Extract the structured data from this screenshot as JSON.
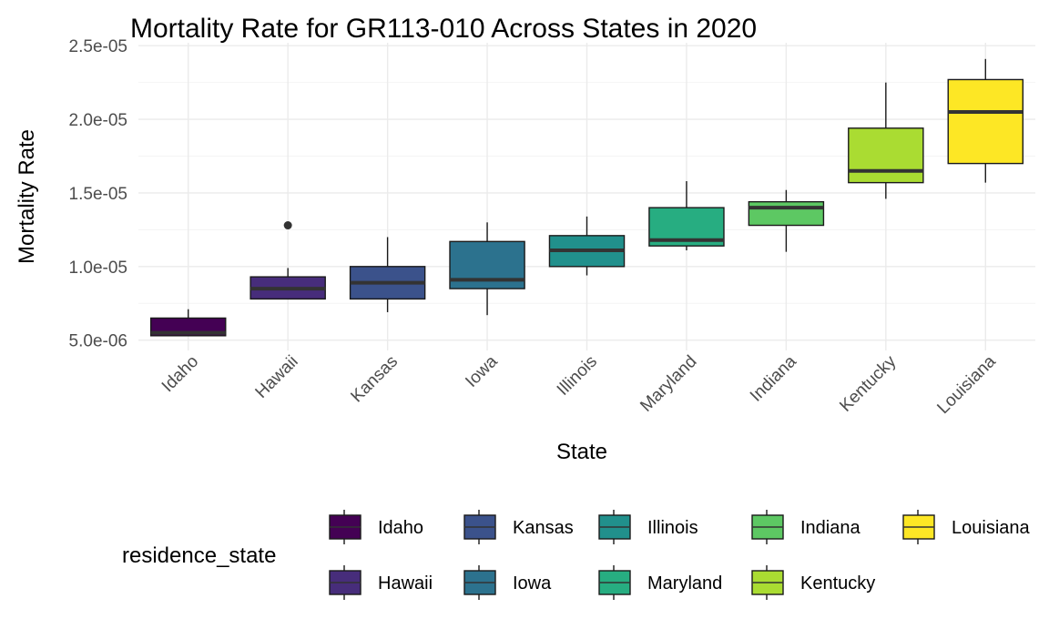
{
  "chart_data": {
    "type": "box",
    "title": "Mortality Rate for GR113-010 Across States in 2020",
    "xlabel": "State",
    "ylabel": "Mortality Rate",
    "ylim": [
      4.3e-06,
      2.52e-05
    ],
    "y_ticks": [
      5e-06,
      1e-05,
      1.5e-05,
      2e-05,
      2.5e-05
    ],
    "y_tick_labels": [
      "5.0e-06",
      "1.0e-05",
      "1.5e-05",
      "2.0e-05",
      "2.5e-05"
    ],
    "grid": true,
    "legend_title": "residence_state",
    "legend_position": "bottom",
    "categories": [
      "Idaho",
      "Hawaii",
      "Kansas",
      "Iowa",
      "Illinois",
      "Maryland",
      "Indiana",
      "Kentucky",
      "Louisiana"
    ],
    "series": [
      {
        "name": "Idaho",
        "color": "#440154",
        "whisker_low": 5.3e-06,
        "q1": 5.3e-06,
        "median": 5.5e-06,
        "q3": 6.5e-06,
        "whisker_high": 7.1e-06,
        "outliers": []
      },
      {
        "name": "Hawaii",
        "color": "#472D7B",
        "whisker_low": 7.8e-06,
        "q1": 7.8e-06,
        "median": 8.5e-06,
        "q3": 9.3e-06,
        "whisker_high": 9.9e-06,
        "outliers": [
          1.28e-05
        ]
      },
      {
        "name": "Kansas",
        "color": "#3B528B",
        "whisker_low": 6.9e-06,
        "q1": 7.8e-06,
        "median": 8.9e-06,
        "q3": 1e-05,
        "whisker_high": 1.2e-05,
        "outliers": []
      },
      {
        "name": "Iowa",
        "color": "#2C728E",
        "whisker_low": 6.7e-06,
        "q1": 8.5e-06,
        "median": 9.1e-06,
        "q3": 1.17e-05,
        "whisker_high": 1.3e-05,
        "outliers": []
      },
      {
        "name": "Illinois",
        "color": "#21908C",
        "whisker_low": 9.4e-06,
        "q1": 1e-05,
        "median": 1.11e-05,
        "q3": 1.21e-05,
        "whisker_high": 1.34e-05,
        "outliers": []
      },
      {
        "name": "Maryland",
        "color": "#27AD81",
        "whisker_low": 1.11e-05,
        "q1": 1.14e-05,
        "median": 1.18e-05,
        "q3": 1.4e-05,
        "whisker_high": 1.58e-05,
        "outliers": []
      },
      {
        "name": "Indiana",
        "color": "#5DC863",
        "whisker_low": 1.1e-05,
        "q1": 1.28e-05,
        "median": 1.4e-05,
        "q3": 1.44e-05,
        "whisker_high": 1.52e-05,
        "outliers": []
      },
      {
        "name": "Kentucky",
        "color": "#AADC32",
        "whisker_low": 1.46e-05,
        "q1": 1.57e-05,
        "median": 1.65e-05,
        "q3": 1.94e-05,
        "whisker_high": 2.25e-05,
        "outliers": []
      },
      {
        "name": "Louisiana",
        "color": "#FDE725",
        "whisker_low": 1.57e-05,
        "q1": 1.7e-05,
        "median": 2.05e-05,
        "q3": 2.27e-05,
        "whisker_high": 2.41e-05,
        "outliers": []
      }
    ]
  }
}
